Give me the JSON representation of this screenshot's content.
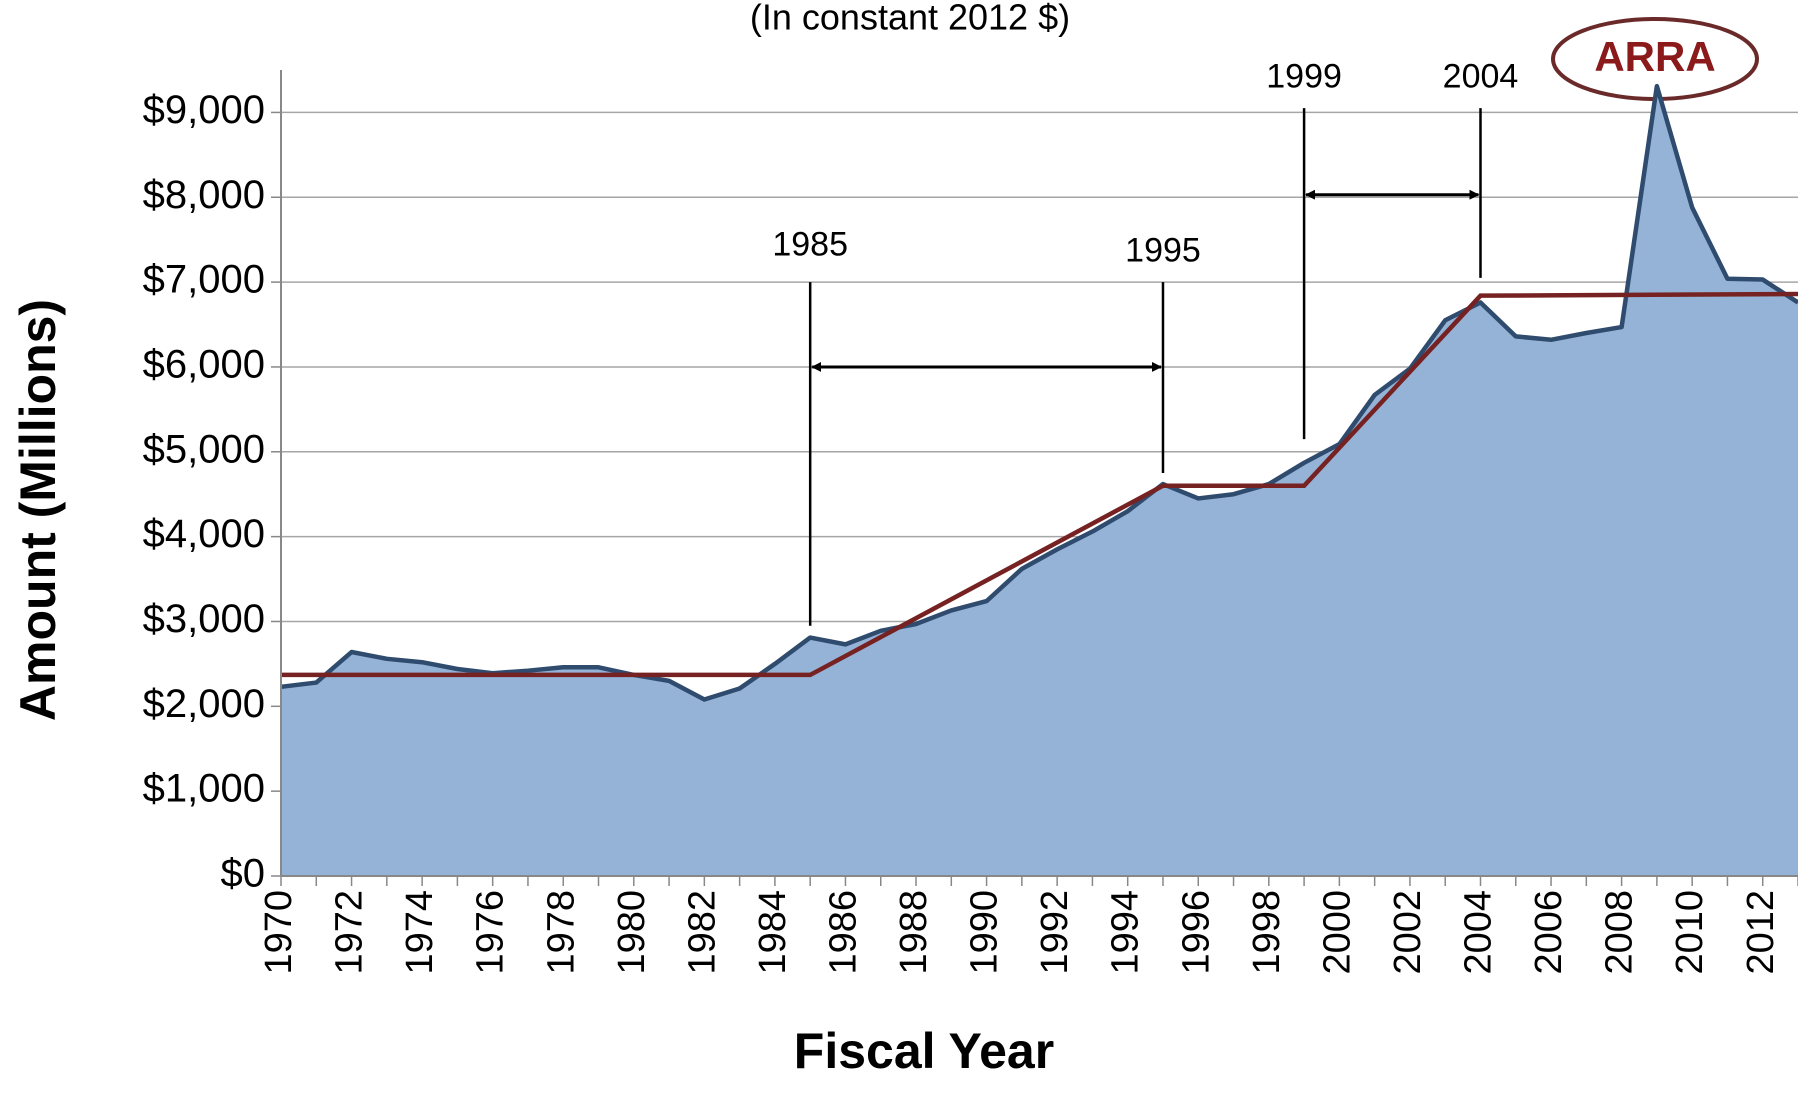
{
  "chart_data": {
    "type": "area",
    "title": "(In constant 2012 $)",
    "xlabel": "Fiscal Year",
    "ylabel": "Amount (Millions)",
    "x": [
      1970,
      1971,
      1972,
      1973,
      1974,
      1975,
      1976,
      1977,
      1978,
      1979,
      1980,
      1981,
      1982,
      1983,
      1984,
      1985,
      1986,
      1987,
      1988,
      1989,
      1990,
      1991,
      1992,
      1993,
      1994,
      1995,
      1996,
      1997,
      1998,
      1999,
      2000,
      2001,
      2002,
      2003,
      2004,
      2005,
      2006,
      2007,
      2008,
      2009,
      2010,
      2011,
      2012,
      2013
    ],
    "series": [
      {
        "color": "#95b3d7",
        "line_color": "#2f4b6e",
        "values": [
          2230,
          2280,
          2640,
          2560,
          2520,
          2440,
          2390,
          2420,
          2460,
          2460,
          2370,
          2300,
          2080,
          2210,
          2500,
          2810,
          2730,
          2890,
          2970,
          3130,
          3240,
          3620,
          3850,
          4060,
          4300,
          4620,
          4450,
          4500,
          4620,
          4870,
          5090,
          5670,
          5980,
          6550,
          6760,
          6360,
          6320,
          6400,
          6470,
          9310,
          7880,
          7040,
          7030,
          6760
        ]
      },
      {
        "color": "#762222",
        "type": "line",
        "x": [
          1970,
          1985,
          1995,
          1999,
          2004,
          2013
        ],
        "values": [
          2370,
          2370,
          4600,
          4600,
          6840,
          6860
        ]
      }
    ],
    "xlim": [
      1970,
      2013
    ],
    "xticks": [
      1970,
      1972,
      1974,
      1976,
      1978,
      1980,
      1982,
      1984,
      1986,
      1988,
      1990,
      1992,
      1994,
      1996,
      1998,
      2000,
      2002,
      2004,
      2006,
      2008,
      2010,
      2012
    ],
    "ylim": [
      0,
      9500
    ],
    "yticks": [
      {
        "value": 0,
        "label": "$0"
      },
      {
        "value": 1000,
        "label": "$1,000"
      },
      {
        "value": 2000,
        "label": "$2,000"
      },
      {
        "value": 3000,
        "label": "$3,000"
      },
      {
        "value": 4000,
        "label": "$4,000"
      },
      {
        "value": 5000,
        "label": "$5,000"
      },
      {
        "value": 6000,
        "label": "$6,000"
      },
      {
        "value": 7000,
        "label": "$7,000"
      },
      {
        "value": 8000,
        "label": "$8,000"
      },
      {
        "value": 9000,
        "label": "$9,000"
      }
    ],
    "grid": true,
    "annotations": [
      "1985",
      "1995",
      "1999",
      "2004"
    ],
    "callout": "ARRA"
  }
}
